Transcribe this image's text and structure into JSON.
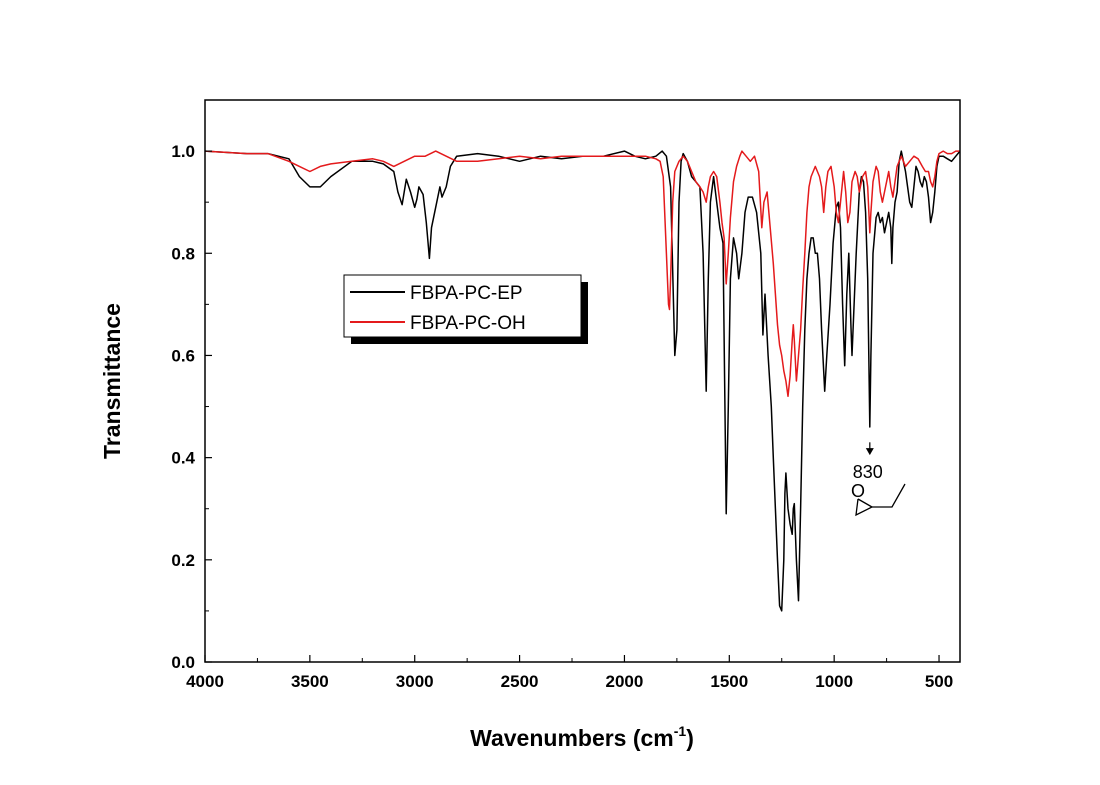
{
  "chart_data": {
    "type": "line",
    "xlabel": "Wavenumbers (cm",
    "xlabel_sup": "-1",
    "xlabel_close": ")",
    "ylabel": "Transmittance",
    "xlim": [
      4000,
      400
    ],
    "ylim": [
      0.0,
      1.1
    ],
    "x_reversed": true,
    "x_ticks": [
      4000,
      3500,
      3000,
      2500,
      2000,
      1500,
      1000,
      500
    ],
    "x_tick_labels": [
      "4000",
      "3500",
      "3000",
      "2500",
      "2000",
      "1500",
      "1000",
      "500"
    ],
    "y_ticks": [
      0.0,
      0.2,
      0.4,
      0.6,
      0.8,
      1.0
    ],
    "y_tick_labels": [
      "0.0",
      "0.2",
      "0.4",
      "0.6",
      "0.8",
      "1.0"
    ],
    "grid": false,
    "legend_position": "center-left",
    "series": [
      {
        "name": "FBPA-PC-EP",
        "color": "#000000",
        "points": [
          [
            4000,
            1.0
          ],
          [
            3800,
            0.995
          ],
          [
            3700,
            0.995
          ],
          [
            3600,
            0.985
          ],
          [
            3550,
            0.95
          ],
          [
            3500,
            0.93
          ],
          [
            3450,
            0.93
          ],
          [
            3400,
            0.95
          ],
          [
            3300,
            0.98
          ],
          [
            3200,
            0.98
          ],
          [
            3150,
            0.975
          ],
          [
            3100,
            0.96
          ],
          [
            3080,
            0.92
          ],
          [
            3060,
            0.895
          ],
          [
            3050,
            0.92
          ],
          [
            3040,
            0.945
          ],
          [
            3020,
            0.92
          ],
          [
            3000,
            0.89
          ],
          [
            2990,
            0.905
          ],
          [
            2980,
            0.93
          ],
          [
            2960,
            0.915
          ],
          [
            2945,
            0.86
          ],
          [
            2930,
            0.79
          ],
          [
            2920,
            0.85
          ],
          [
            2900,
            0.89
          ],
          [
            2880,
            0.93
          ],
          [
            2870,
            0.91
          ],
          [
            2850,
            0.93
          ],
          [
            2830,
            0.97
          ],
          [
            2800,
            0.99
          ],
          [
            2700,
            0.995
          ],
          [
            2600,
            0.99
          ],
          [
            2500,
            0.98
          ],
          [
            2400,
            0.99
          ],
          [
            2300,
            0.985
          ],
          [
            2200,
            0.99
          ],
          [
            2100,
            0.99
          ],
          [
            2000,
            1.0
          ],
          [
            1950,
            0.99
          ],
          [
            1900,
            0.985
          ],
          [
            1850,
            0.99
          ],
          [
            1820,
            1.0
          ],
          [
            1800,
            0.99
          ],
          [
            1780,
            0.93
          ],
          [
            1760,
            0.6
          ],
          [
            1750,
            0.65
          ],
          [
            1740,
            0.9
          ],
          [
            1730,
            0.98
          ],
          [
            1720,
            0.995
          ],
          [
            1700,
            0.98
          ],
          [
            1680,
            0.95
          ],
          [
            1660,
            0.94
          ],
          [
            1640,
            0.93
          ],
          [
            1625,
            0.8
          ],
          [
            1610,
            0.53
          ],
          [
            1600,
            0.75
          ],
          [
            1590,
            0.9
          ],
          [
            1575,
            0.95
          ],
          [
            1560,
            0.9
          ],
          [
            1545,
            0.85
          ],
          [
            1530,
            0.82
          ],
          [
            1515,
            0.29
          ],
          [
            1505,
            0.5
          ],
          [
            1495,
            0.75
          ],
          [
            1480,
            0.83
          ],
          [
            1465,
            0.8
          ],
          [
            1455,
            0.75
          ],
          [
            1440,
            0.8
          ],
          [
            1425,
            0.88
          ],
          [
            1410,
            0.91
          ],
          [
            1390,
            0.91
          ],
          [
            1370,
            0.88
          ],
          [
            1350,
            0.8
          ],
          [
            1340,
            0.64
          ],
          [
            1330,
            0.72
          ],
          [
            1315,
            0.6
          ],
          [
            1300,
            0.5
          ],
          [
            1290,
            0.4
          ],
          [
            1280,
            0.3
          ],
          [
            1270,
            0.2
          ],
          [
            1260,
            0.11
          ],
          [
            1250,
            0.1
          ],
          [
            1240,
            0.2
          ],
          [
            1235,
            0.33
          ],
          [
            1230,
            0.37
          ],
          [
            1220,
            0.3
          ],
          [
            1210,
            0.27
          ],
          [
            1200,
            0.25
          ],
          [
            1195,
            0.3
          ],
          [
            1190,
            0.31
          ],
          [
            1180,
            0.2
          ],
          [
            1170,
            0.12
          ],
          [
            1160,
            0.3
          ],
          [
            1150,
            0.5
          ],
          [
            1140,
            0.65
          ],
          [
            1130,
            0.75
          ],
          [
            1120,
            0.8
          ],
          [
            1110,
            0.83
          ],
          [
            1100,
            0.83
          ],
          [
            1090,
            0.8
          ],
          [
            1080,
            0.8
          ],
          [
            1070,
            0.75
          ],
          [
            1060,
            0.65
          ],
          [
            1045,
            0.53
          ],
          [
            1035,
            0.6
          ],
          [
            1020,
            0.7
          ],
          [
            1005,
            0.82
          ],
          [
            990,
            0.89
          ],
          [
            980,
            0.9
          ],
          [
            970,
            0.85
          ],
          [
            960,
            0.7
          ],
          [
            950,
            0.58
          ],
          [
            940,
            0.72
          ],
          [
            930,
            0.8
          ],
          [
            920,
            0.66
          ],
          [
            915,
            0.6
          ],
          [
            905,
            0.7
          ],
          [
            895,
            0.8
          ],
          [
            880,
            0.92
          ],
          [
            870,
            0.95
          ],
          [
            860,
            0.94
          ],
          [
            850,
            0.88
          ],
          [
            840,
            0.75
          ],
          [
            835,
            0.6
          ],
          [
            830,
            0.46
          ],
          [
            825,
            0.6
          ],
          [
            815,
            0.8
          ],
          [
            800,
            0.87
          ],
          [
            790,
            0.88
          ],
          [
            780,
            0.86
          ],
          [
            770,
            0.87
          ],
          [
            760,
            0.84
          ],
          [
            750,
            0.86
          ],
          [
            740,
            0.88
          ],
          [
            730,
            0.85
          ],
          [
            725,
            0.78
          ],
          [
            720,
            0.85
          ],
          [
            710,
            0.9
          ],
          [
            700,
            0.92
          ],
          [
            690,
            0.98
          ],
          [
            680,
            1.0
          ],
          [
            670,
            0.98
          ],
          [
            660,
            0.96
          ],
          [
            650,
            0.93
          ],
          [
            640,
            0.9
          ],
          [
            630,
            0.89
          ],
          [
            620,
            0.93
          ],
          [
            610,
            0.97
          ],
          [
            600,
            0.96
          ],
          [
            590,
            0.94
          ],
          [
            580,
            0.93
          ],
          [
            570,
            0.95
          ],
          [
            560,
            0.94
          ],
          [
            550,
            0.91
          ],
          [
            540,
            0.86
          ],
          [
            530,
            0.88
          ],
          [
            520,
            0.92
          ],
          [
            510,
            0.97
          ],
          [
            500,
            0.99
          ],
          [
            480,
            0.99
          ],
          [
            460,
            0.985
          ],
          [
            440,
            0.98
          ],
          [
            420,
            0.99
          ],
          [
            400,
            1.0
          ]
        ]
      },
      {
        "name": "FBPA-PC-OH",
        "color": "#e41a1c",
        "points": [
          [
            4000,
            1.0
          ],
          [
            3800,
            0.995
          ],
          [
            3700,
            0.995
          ],
          [
            3600,
            0.98
          ],
          [
            3550,
            0.97
          ],
          [
            3500,
            0.96
          ],
          [
            3450,
            0.97
          ],
          [
            3400,
            0.975
          ],
          [
            3300,
            0.98
          ],
          [
            3200,
            0.985
          ],
          [
            3150,
            0.98
          ],
          [
            3100,
            0.97
          ],
          [
            3050,
            0.98
          ],
          [
            3000,
            0.99
          ],
          [
            2950,
            0.99
          ],
          [
            2900,
            1.0
          ],
          [
            2850,
            0.99
          ],
          [
            2800,
            0.98
          ],
          [
            2700,
            0.98
          ],
          [
            2600,
            0.985
          ],
          [
            2500,
            0.99
          ],
          [
            2400,
            0.985
          ],
          [
            2300,
            0.99
          ],
          [
            2200,
            0.99
          ],
          [
            2100,
            0.99
          ],
          [
            2000,
            0.99
          ],
          [
            1950,
            0.99
          ],
          [
            1900,
            0.99
          ],
          [
            1850,
            0.985
          ],
          [
            1830,
            0.98
          ],
          [
            1815,
            0.95
          ],
          [
            1800,
            0.8
          ],
          [
            1790,
            0.7
          ],
          [
            1785,
            0.69
          ],
          [
            1780,
            0.75
          ],
          [
            1770,
            0.9
          ],
          [
            1760,
            0.96
          ],
          [
            1740,
            0.98
          ],
          [
            1720,
            0.99
          ],
          [
            1700,
            0.98
          ],
          [
            1680,
            0.96
          ],
          [
            1660,
            0.94
          ],
          [
            1640,
            0.93
          ],
          [
            1625,
            0.92
          ],
          [
            1610,
            0.9
          ],
          [
            1600,
            0.93
          ],
          [
            1590,
            0.95
          ],
          [
            1575,
            0.96
          ],
          [
            1560,
            0.95
          ],
          [
            1545,
            0.9
          ],
          [
            1535,
            0.86
          ],
          [
            1525,
            0.83
          ],
          [
            1515,
            0.74
          ],
          [
            1505,
            0.8
          ],
          [
            1495,
            0.87
          ],
          [
            1480,
            0.94
          ],
          [
            1465,
            0.97
          ],
          [
            1450,
            0.99
          ],
          [
            1440,
            1.0
          ],
          [
            1420,
            0.99
          ],
          [
            1400,
            0.98
          ],
          [
            1380,
            0.99
          ],
          [
            1360,
            0.96
          ],
          [
            1345,
            0.85
          ],
          [
            1335,
            0.9
          ],
          [
            1320,
            0.92
          ],
          [
            1305,
            0.85
          ],
          [
            1290,
            0.78
          ],
          [
            1280,
            0.72
          ],
          [
            1270,
            0.66
          ],
          [
            1260,
            0.62
          ],
          [
            1250,
            0.6
          ],
          [
            1240,
            0.57
          ],
          [
            1230,
            0.55
          ],
          [
            1220,
            0.52
          ],
          [
            1210,
            0.56
          ],
          [
            1200,
            0.63
          ],
          [
            1195,
            0.66
          ],
          [
            1190,
            0.63
          ],
          [
            1180,
            0.55
          ],
          [
            1170,
            0.6
          ],
          [
            1160,
            0.65
          ],
          [
            1150,
            0.73
          ],
          [
            1140,
            0.8
          ],
          [
            1130,
            0.88
          ],
          [
            1120,
            0.93
          ],
          [
            1110,
            0.95
          ],
          [
            1100,
            0.96
          ],
          [
            1090,
            0.97
          ],
          [
            1080,
            0.96
          ],
          [
            1070,
            0.95
          ],
          [
            1060,
            0.93
          ],
          [
            1050,
            0.88
          ],
          [
            1040,
            0.93
          ],
          [
            1030,
            0.96
          ],
          [
            1015,
            0.97
          ],
          [
            1000,
            0.93
          ],
          [
            990,
            0.88
          ],
          [
            980,
            0.86
          ],
          [
            970,
            0.9
          ],
          [
            955,
            0.96
          ],
          [
            945,
            0.92
          ],
          [
            935,
            0.86
          ],
          [
            925,
            0.88
          ],
          [
            915,
            0.94
          ],
          [
            900,
            0.96
          ],
          [
            890,
            0.95
          ],
          [
            880,
            0.92
          ],
          [
            865,
            0.95
          ],
          [
            850,
            0.96
          ],
          [
            840,
            0.93
          ],
          [
            830,
            0.84
          ],
          [
            825,
            0.88
          ],
          [
            815,
            0.94
          ],
          [
            800,
            0.97
          ],
          [
            790,
            0.96
          ],
          [
            780,
            0.92
          ],
          [
            770,
            0.9
          ],
          [
            760,
            0.92
          ],
          [
            750,
            0.94
          ],
          [
            740,
            0.96
          ],
          [
            730,
            0.93
          ],
          [
            720,
            0.91
          ],
          [
            710,
            0.94
          ],
          [
            700,
            0.97
          ],
          [
            690,
            0.98
          ],
          [
            680,
            0.99
          ],
          [
            670,
            0.98
          ],
          [
            660,
            0.97
          ],
          [
            640,
            0.98
          ],
          [
            620,
            0.99
          ],
          [
            600,
            0.985
          ],
          [
            580,
            0.97
          ],
          [
            565,
            0.96
          ],
          [
            550,
            0.96
          ],
          [
            540,
            0.94
          ],
          [
            530,
            0.93
          ],
          [
            520,
            0.95
          ],
          [
            510,
            0.98
          ],
          [
            500,
            0.995
          ],
          [
            480,
            1.0
          ],
          [
            460,
            0.995
          ],
          [
            440,
            0.995
          ],
          [
            420,
            1.0
          ],
          [
            400,
            1.0
          ]
        ]
      }
    ],
    "annotation": {
      "label": "830",
      "x": 830,
      "y_from": 0.43,
      "y_to": 0.405,
      "structure_label": "O"
    }
  }
}
